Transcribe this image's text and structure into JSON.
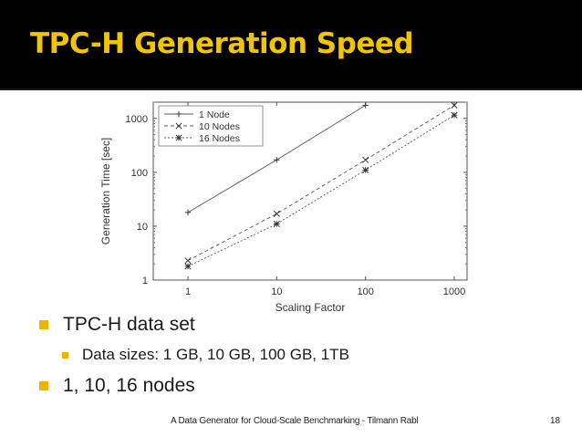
{
  "slide": {
    "title": "TPC-H Generation Speed",
    "bullets": [
      {
        "level": 1,
        "text": "TPC-H data set"
      },
      {
        "level": 2,
        "text": "Data sizes: 1 GB, 10 GB, 100 GB, 1TB"
      },
      {
        "level": 1,
        "text": "1, 10, 16 nodes"
      }
    ],
    "footer": "A Data Generator for Cloud-Scale Benchmarking - Tilmann Rabl",
    "page_number": "18",
    "colors": {
      "title": "#f2c500",
      "bullet": "#f0b400",
      "background": "#000000",
      "content_bg": "#ffffff"
    }
  },
  "chart_data": {
    "type": "line",
    "xscale": "log",
    "yscale": "log",
    "xlabel": "Scaling Factor",
    "ylabel": "Generation Time [sec]",
    "x": [
      1,
      10,
      100,
      1000
    ],
    "xticks": [
      "1",
      "10",
      "100",
      "1000"
    ],
    "yticks": [
      "1",
      "10",
      "100",
      "1000"
    ],
    "xlim": [
      1,
      1000
    ],
    "ylim": [
      1,
      2000
    ],
    "legend_position": "top-left",
    "series": [
      {
        "name": "1 Node",
        "marker": "+",
        "dash": "solid",
        "x": [
          1,
          10,
          100
        ],
        "values": [
          18,
          170,
          1750
        ]
      },
      {
        "name": "10 Nodes",
        "marker": "x",
        "dash": "dashed",
        "x": [
          1,
          10,
          100,
          1000
        ],
        "values": [
          2.3,
          17,
          170,
          1750
        ]
      },
      {
        "name": "16 Nodes",
        "marker": "*",
        "dash": "dotted",
        "x": [
          1,
          10,
          100,
          1000
        ],
        "values": [
          1.8,
          11,
          110,
          1150
        ]
      }
    ]
  }
}
